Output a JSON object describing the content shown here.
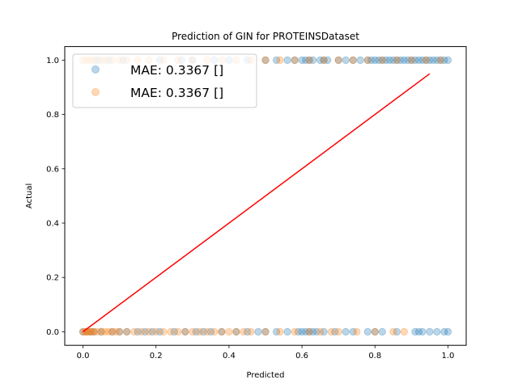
{
  "chart_data": {
    "type": "scatter",
    "title": "Prediction of GIN for PROTEINSDataset",
    "xlabel": "Predicted",
    "ylabel": "Actual",
    "xlim": [
      -0.05,
      1.05
    ],
    "ylim": [
      -0.05,
      1.05
    ],
    "xticks": [
      0.0,
      0.2,
      0.4,
      0.6,
      0.8,
      1.0
    ],
    "yticks": [
      0.0,
      0.2,
      0.4,
      0.6,
      0.8,
      1.0
    ],
    "grid": false,
    "legend_position": "top-left",
    "series": [
      {
        "name": "MAE: 0.3367 []",
        "color": "#1f77b4",
        "alpha": 0.3,
        "points": [
          [
            0.0,
            0
          ],
          [
            0.01,
            0
          ],
          [
            0.02,
            0
          ],
          [
            0.03,
            0
          ],
          [
            0.05,
            0
          ],
          [
            0.08,
            0
          ],
          [
            0.1,
            0
          ],
          [
            0.12,
            0
          ],
          [
            0.15,
            0
          ],
          [
            0.17,
            0
          ],
          [
            0.19,
            0
          ],
          [
            0.21,
            0
          ],
          [
            0.25,
            0
          ],
          [
            0.28,
            0
          ],
          [
            0.31,
            0
          ],
          [
            0.33,
            0
          ],
          [
            0.35,
            0
          ],
          [
            0.38,
            0
          ],
          [
            0.42,
            0
          ],
          [
            0.45,
            0
          ],
          [
            0.48,
            0
          ],
          [
            0.5,
            0
          ],
          [
            0.53,
            0
          ],
          [
            0.56,
            0
          ],
          [
            0.59,
            0
          ],
          [
            0.6,
            0
          ],
          [
            0.61,
            0
          ],
          [
            0.62,
            0
          ],
          [
            0.63,
            0
          ],
          [
            0.64,
            0
          ],
          [
            0.66,
            0
          ],
          [
            0.69,
            0
          ],
          [
            0.72,
            0
          ],
          [
            0.74,
            0
          ],
          [
            0.78,
            0
          ],
          [
            0.8,
            0
          ],
          [
            0.82,
            0
          ],
          [
            0.86,
            0
          ],
          [
            0.91,
            0
          ],
          [
            0.92,
            0
          ],
          [
            0.93,
            0
          ],
          [
            0.95,
            0
          ],
          [
            0.97,
            0
          ],
          [
            0.99,
            0
          ],
          [
            1.0,
            0
          ],
          [
            0.04,
            1
          ],
          [
            0.07,
            1
          ],
          [
            0.11,
            1
          ],
          [
            0.21,
            1
          ],
          [
            0.27,
            1
          ],
          [
            0.3,
            1
          ],
          [
            0.36,
            1
          ],
          [
            0.4,
            1
          ],
          [
            0.45,
            1
          ],
          [
            0.5,
            1
          ],
          [
            0.53,
            1
          ],
          [
            0.56,
            1
          ],
          [
            0.58,
            1
          ],
          [
            0.6,
            1
          ],
          [
            0.61,
            1
          ],
          [
            0.62,
            1
          ],
          [
            0.63,
            1
          ],
          [
            0.65,
            1
          ],
          [
            0.66,
            1
          ],
          [
            0.67,
            1
          ],
          [
            0.7,
            1
          ],
          [
            0.72,
            1
          ],
          [
            0.74,
            1
          ],
          [
            0.76,
            1
          ],
          [
            0.78,
            1
          ],
          [
            0.79,
            1
          ],
          [
            0.8,
            1
          ],
          [
            0.81,
            1
          ],
          [
            0.82,
            1
          ],
          [
            0.83,
            1
          ],
          [
            0.84,
            1
          ],
          [
            0.85,
            1
          ],
          [
            0.86,
            1
          ],
          [
            0.87,
            1
          ],
          [
            0.88,
            1
          ],
          [
            0.89,
            1
          ],
          [
            0.9,
            1
          ],
          [
            0.91,
            1
          ],
          [
            0.92,
            1
          ],
          [
            0.93,
            1
          ],
          [
            0.94,
            1
          ],
          [
            0.95,
            1
          ],
          [
            0.96,
            1
          ],
          [
            0.97,
            1
          ],
          [
            0.98,
            1
          ],
          [
            0.99,
            1
          ],
          [
            1.0,
            1
          ]
        ]
      },
      {
        "name": "MAE: 0.3367 []",
        "color": "#ff7f0e",
        "alpha": 0.3,
        "points": [
          [
            0.0,
            0
          ],
          [
            0.005,
            0
          ],
          [
            0.01,
            0
          ],
          [
            0.015,
            0
          ],
          [
            0.02,
            0
          ],
          [
            0.025,
            0
          ],
          [
            0.03,
            0
          ],
          [
            0.04,
            0
          ],
          [
            0.05,
            0
          ],
          [
            0.06,
            0
          ],
          [
            0.07,
            0
          ],
          [
            0.08,
            0
          ],
          [
            0.09,
            0
          ],
          [
            0.1,
            0
          ],
          [
            0.12,
            0
          ],
          [
            0.14,
            0
          ],
          [
            0.16,
            0
          ],
          [
            0.18,
            0
          ],
          [
            0.2,
            0
          ],
          [
            0.22,
            0
          ],
          [
            0.24,
            0
          ],
          [
            0.26,
            0
          ],
          [
            0.28,
            0
          ],
          [
            0.3,
            0
          ],
          [
            0.32,
            0
          ],
          [
            0.34,
            0
          ],
          [
            0.36,
            0
          ],
          [
            0.38,
            0
          ],
          [
            0.4,
            0
          ],
          [
            0.42,
            0
          ],
          [
            0.44,
            0
          ],
          [
            0.46,
            0
          ],
          [
            0.5,
            0
          ],
          [
            0.54,
            0
          ],
          [
            0.58,
            0
          ],
          [
            0.62,
            0
          ],
          [
            0.65,
            0
          ],
          [
            0.68,
            0
          ],
          [
            0.7,
            0
          ],
          [
            0.75,
            0
          ],
          [
            0.8,
            0
          ],
          [
            0.85,
            0
          ],
          [
            0.88,
            0
          ],
          [
            0.0,
            1
          ],
          [
            0.01,
            1
          ],
          [
            0.02,
            1
          ],
          [
            0.03,
            1
          ],
          [
            0.05,
            1
          ],
          [
            0.06,
            1
          ],
          [
            0.08,
            1
          ],
          [
            0.1,
            1
          ],
          [
            0.12,
            1
          ],
          [
            0.15,
            1
          ],
          [
            0.18,
            1
          ],
          [
            0.22,
            1
          ],
          [
            0.26,
            1
          ],
          [
            0.3,
            1
          ],
          [
            0.34,
            1
          ],
          [
            0.38,
            1
          ],
          [
            0.42,
            1
          ],
          [
            0.46,
            1
          ],
          [
            0.5,
            1
          ],
          [
            0.54,
            1
          ],
          [
            0.58,
            1
          ],
          [
            0.62,
            1
          ],
          [
            0.66,
            1
          ],
          [
            0.7,
            1
          ],
          [
            0.74,
            1
          ],
          [
            0.78,
            1
          ],
          [
            0.82,
            1
          ],
          [
            0.86,
            1
          ],
          [
            0.9,
            1
          ],
          [
            0.94,
            1
          ],
          [
            0.98,
            1
          ]
        ]
      }
    ],
    "lines": [
      {
        "color": "#ff0000",
        "points": [
          [
            0.0,
            0.0
          ],
          [
            0.95,
            0.95
          ]
        ]
      }
    ]
  }
}
